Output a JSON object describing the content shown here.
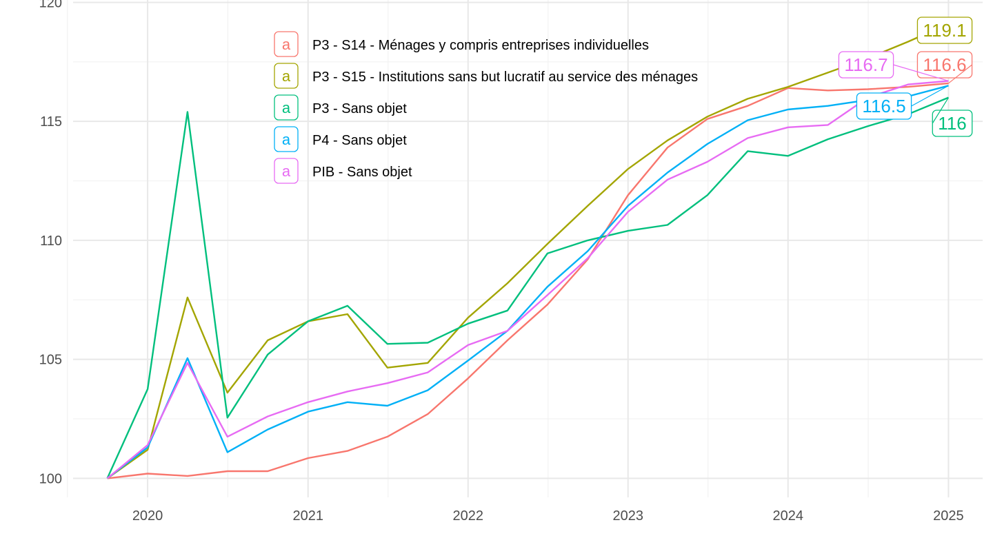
{
  "chart_data": {
    "type": "line",
    "title": "",
    "xlabel": "",
    "ylabel": "",
    "x": [
      "2019-10-01",
      "2020-01-01",
      "2020-04-01",
      "2020-07-01",
      "2020-10-01",
      "2021-01-01",
      "2021-04-01",
      "2021-07-01",
      "2021-10-01",
      "2022-01-01",
      "2022-04-01",
      "2022-07-01",
      "2022-10-01",
      "2023-01-01",
      "2023-04-01",
      "2023-07-01",
      "2023-10-01",
      "2024-01-01",
      "2024-04-01",
      "2024-07-01",
      "2024-10-01",
      "2025-01-01"
    ],
    "x_ticks": [
      {
        "label": "2020",
        "date": "2020-01-01"
      },
      {
        "label": "2021",
        "date": "2021-01-01"
      },
      {
        "label": "2022",
        "date": "2022-01-01"
      },
      {
        "label": "2023",
        "date": "2023-01-01"
      },
      {
        "label": "2024",
        "date": "2024-01-01"
      },
      {
        "label": "2025",
        "date": "2025-01-01"
      }
    ],
    "xlim": [
      "2019-07-15",
      "2025-03-20"
    ],
    "y_ticks": [
      "100",
      "105",
      "110",
      "115",
      "120"
    ],
    "ylim": [
      99.2,
      120.1
    ],
    "grid": true,
    "legend_position": "top-left inside",
    "legend_key_glyph": "a",
    "series": [
      {
        "name": "P3 - S14 - Ménages y compris entreprises individuelles",
        "color": "#F8766D",
        "values": [
          100,
          100.2,
          100.1,
          100.3,
          100.3,
          100.85,
          101.15,
          101.75,
          102.7,
          104.2,
          105.8,
          107.3,
          109.2,
          111.9,
          113.9,
          115.1,
          115.65,
          116.4,
          116.3,
          116.35,
          116.45,
          116.6
        ],
        "end_label": "116.6"
      },
      {
        "name": "P3 - S15 - Institutions sans but lucratif au service des ménages",
        "color": "#A3A500",
        "values": [
          100,
          101.2,
          107.6,
          103.6,
          105.8,
          106.6,
          106.9,
          104.65,
          104.85,
          106.75,
          108.2,
          109.85,
          111.45,
          113.0,
          114.2,
          115.2,
          115.95,
          116.45,
          117.05,
          117.65,
          118.35,
          119.1
        ],
        "end_label": "119.1"
      },
      {
        "name": "P3 - Sans objet",
        "color": "#00BF7D",
        "values": [
          100,
          103.75,
          115.4,
          102.55,
          105.2,
          106.6,
          107.25,
          105.65,
          105.7,
          106.5,
          107.05,
          109.45,
          110.0,
          110.4,
          110.65,
          111.9,
          113.75,
          113.55,
          114.25,
          114.8,
          115.3,
          116.0
        ],
        "end_label": "116"
      },
      {
        "name": "P4 - Sans objet",
        "color": "#00B0F6",
        "values": [
          100,
          101.3,
          105.05,
          101.1,
          102.05,
          102.8,
          103.2,
          103.05,
          103.7,
          104.95,
          106.2,
          108.05,
          109.55,
          111.45,
          112.85,
          114.05,
          115.05,
          115.5,
          115.65,
          115.9,
          116.05,
          116.5
        ],
        "end_label": "116.5"
      },
      {
        "name": "PIB - Sans objet",
        "color": "#E76BF3",
        "values": [
          100,
          101.4,
          104.85,
          101.75,
          102.6,
          103.2,
          103.65,
          104.0,
          104.45,
          105.6,
          106.2,
          107.7,
          109.25,
          111.2,
          112.55,
          113.3,
          114.3,
          114.75,
          114.85,
          116.0,
          116.55,
          116.7
        ],
        "end_label": "116.7"
      }
    ]
  }
}
